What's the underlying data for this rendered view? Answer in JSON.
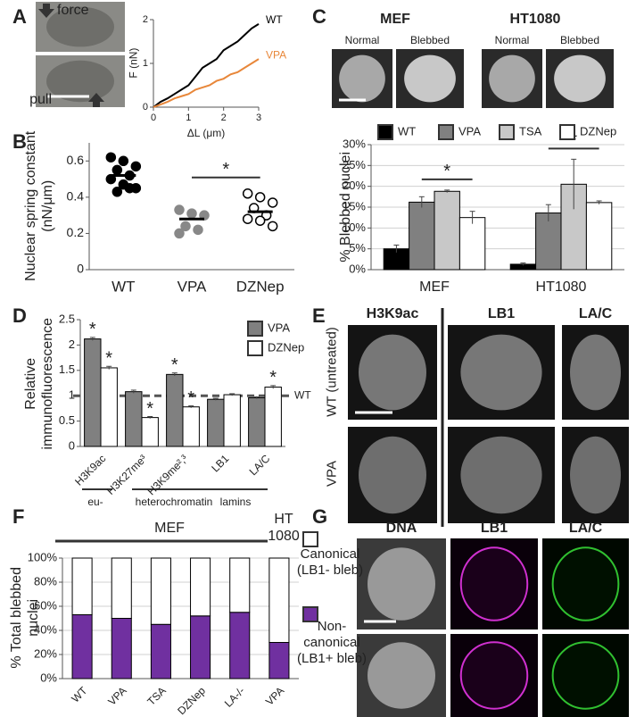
{
  "panel_labels": [
    "A",
    "B",
    "C",
    "D",
    "E",
    "F",
    "G"
  ],
  "panel_a": {
    "top_label": "force",
    "bottom_label": "pull"
  },
  "panel_c": {
    "cell_lines": [
      "MEF",
      "HT1080"
    ],
    "conditions": [
      "Normal",
      "Blebbed",
      "Normal",
      "Blebbed"
    ]
  },
  "panel_d": {
    "groups": [
      "eu-",
      "heterochromatin",
      "lamins"
    ]
  },
  "panel_e": {
    "columns": [
      "H3K9ac",
      "LB1",
      "LA/C"
    ],
    "rows": [
      "WT (untreated)",
      "VPA"
    ]
  },
  "panel_f": {
    "groups": [
      "MEF",
      "HT 1080"
    ]
  },
  "panel_g": {
    "columns": [
      "DNA",
      "LB1",
      "LA/C"
    ]
  },
  "chart_data": [
    {
      "type": "line",
      "x_label": "ΔL (μm)",
      "y_label": "F (nN)",
      "x": [
        0,
        0.2,
        0.4,
        0.6,
        0.8,
        1.0,
        1.2,
        1.4,
        1.6,
        1.8,
        2.0,
        2.2,
        2.4,
        2.6,
        2.8,
        3.0
      ],
      "series": [
        {
          "name": "WT",
          "color": "#000000",
          "values": [
            0,
            0.12,
            0.2,
            0.3,
            0.4,
            0.5,
            0.7,
            0.9,
            1.0,
            1.1,
            1.3,
            1.4,
            1.5,
            1.65,
            1.8,
            1.9
          ]
        },
        {
          "name": "VPA",
          "color": "#e8873a",
          "values": [
            0,
            0.06,
            0.12,
            0.2,
            0.25,
            0.3,
            0.4,
            0.45,
            0.5,
            0.6,
            0.65,
            0.75,
            0.8,
            0.9,
            1.0,
            1.1
          ]
        }
      ],
      "xlim": [
        0,
        3
      ],
      "ylim": [
        0,
        2
      ],
      "xticks": [
        0,
        1,
        2,
        3
      ],
      "yticks": [
        0,
        1,
        2
      ]
    },
    {
      "type": "dot",
      "y_label": "Nuclear spring constant (nN/μm)",
      "categories": [
        "WT",
        "VPA",
        "DZNep"
      ],
      "values": [
        [
          0.62,
          0.6,
          0.57,
          0.55,
          0.52,
          0.5,
          0.47,
          0.45,
          0.43,
          0.45
        ],
        [
          0.33,
          0.31,
          0.3,
          0.24,
          0.22,
          0.2
        ],
        [
          0.42,
          0.4,
          0.37,
          0.34,
          0.3,
          0.28,
          0.27,
          0.24
        ]
      ],
      "means": [
        0.52,
        0.28,
        0.32
      ],
      "colors": [
        "#000000",
        "#888888",
        "#ffffff"
      ],
      "ylim": [
        0,
        0.7
      ],
      "yticks": [
        0,
        0.2,
        0.4,
        0.6
      ],
      "significance_label": "*"
    },
    {
      "type": "bar",
      "y_label": "% Blebbed nuclei",
      "categories": [
        "MEF",
        "HT1080"
      ],
      "series": [
        {
          "name": "WT",
          "color": "#000000",
          "values": [
            5,
            1.3
          ],
          "errors": [
            0.9,
            0.3
          ]
        },
        {
          "name": "VPA",
          "color": "#808080",
          "values": [
            16.2,
            13.6
          ],
          "errors": [
            1.3,
            2
          ]
        },
        {
          "name": "TSA",
          "color": "#c8c8c8",
          "values": [
            18.8,
            20.5
          ],
          "errors": [
            0.3,
            6
          ]
        },
        {
          "name": "DZNep",
          "color": "#ffffff",
          "values": [
            12.5,
            16.1
          ],
          "errors": [
            1.5,
            0.4
          ]
        }
      ],
      "ylim": [
        0,
        30
      ],
      "yticks": [
        {
          "value": 0,
          "label": "0%"
        },
        {
          "value": 5,
          "label": "5%"
        },
        {
          "value": 10,
          "label": "10%"
        },
        {
          "value": 15,
          "label": "15%"
        },
        {
          "value": 20,
          "label": "20%"
        },
        {
          "value": 25,
          "label": "25%"
        },
        {
          "value": 30,
          "label": "30%"
        }
      ],
      "grid": true,
      "legend": "top",
      "significance_label": "*"
    },
    {
      "type": "bar",
      "y_label": "Relative immunofluorescence",
      "categories": [
        "H3K9ac",
        "H3K27me³",
        "H3K9me²,³",
        "LB1",
        "LA/C"
      ],
      "series": [
        {
          "name": "VPA",
          "color": "#808080",
          "values": [
            2.12,
            1.08,
            1.42,
            0.93,
            0.96
          ],
          "errors": [
            0.03,
            0.03,
            0.03,
            0.02,
            0.02
          ],
          "significant": [
            true,
            false,
            true,
            false,
            false
          ]
        },
        {
          "name": "DZNep",
          "color": "#ffffff",
          "values": [
            1.55,
            0.57,
            0.78,
            1.02,
            1.17
          ],
          "errors": [
            0.03,
            0.02,
            0.02,
            0.02,
            0.03
          ],
          "significant": [
            true,
            true,
            true,
            false,
            true
          ]
        }
      ],
      "ylim": [
        0,
        2.5
      ],
      "yticks": [
        0,
        0.5,
        1,
        1.5,
        2,
        2.5
      ],
      "reference": {
        "value": 1,
        "label": "WT"
      },
      "legend": "top-right",
      "significance_label": "*"
    },
    {
      "type": "stacked_bar",
      "y_label": "% Total blebbed nuclei",
      "categories": [
        "WT",
        "VPA",
        "TSA",
        "DZNep",
        "LA-/-",
        "VPA"
      ],
      "series": [
        {
          "name": "Non-canonical (LB1+ bleb)",
          "color": "#7030a0",
          "values": [
            53,
            50,
            45,
            52,
            55,
            30
          ]
        },
        {
          "name": "Canonical (LB1- bleb)",
          "color": "#ffffff",
          "values": [
            47,
            50,
            55,
            48,
            45,
            70
          ]
        }
      ],
      "ylim": [
        0,
        100
      ],
      "yticks": [
        {
          "value": 0,
          "label": "0%"
        },
        {
          "value": 20,
          "label": "20%"
        },
        {
          "value": 40,
          "label": "40%"
        },
        {
          "value": 60,
          "label": "60%"
        },
        {
          "value": 80,
          "label": "80%"
        },
        {
          "value": 100,
          "label": "100%"
        }
      ],
      "grid": true
    }
  ]
}
